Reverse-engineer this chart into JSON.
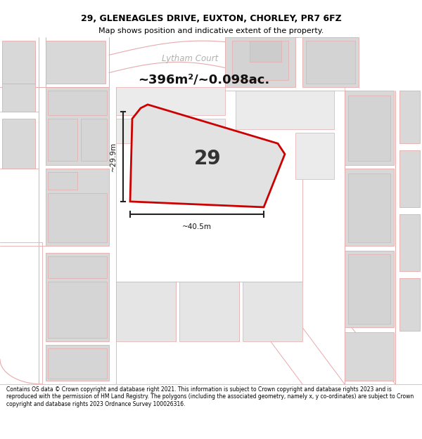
{
  "title_line1": "29, GLENEAGLES DRIVE, EUXTON, CHORLEY, PR7 6FZ",
  "title_line2": "Map shows position and indicative extent of the property.",
  "area_text": "~396m²/~0.098ac.",
  "label_29": "29",
  "width_label": "~40.5m",
  "height_label": "~29.9m",
  "road_label": "Lytham Court",
  "footer_text": "Contains OS data © Crown copyright and database right 2021. This information is subject to Crown copyright and database rights 2023 and is reproduced with the permission of HM Land Registry. The polygons (including the associated geometry, namely x, y co-ordinates) are subject to Crown copyright and database rights 2023 Ordnance Survey 100026316.",
  "map_bg": "#f8f6f6",
  "bld_fill": "#d8d8d8",
  "bld_edge": "#e8aaaa",
  "road_edge": "#e8aaaa",
  "plot_fill": "#e2e2e2",
  "plot_edge": "#cc0000",
  "road_text_color": "#b0b0b0",
  "measure_color": "#222222",
  "title_fs": 9.0,
  "subtitle_fs": 8.0,
  "area_fs": 13,
  "label29_fs": 20,
  "measure_fs": 7.5,
  "road_label_fs": 8.5,
  "footer_fs": 5.5
}
